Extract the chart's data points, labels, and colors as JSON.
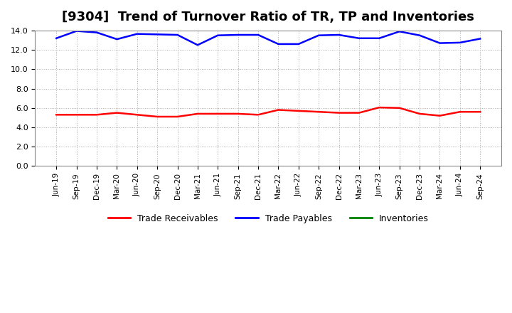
{
  "title": "[9304]  Trend of Turnover Ratio of TR, TP and Inventories",
  "x_labels": [
    "Jun-19",
    "Sep-19",
    "Dec-19",
    "Mar-20",
    "Jun-20",
    "Sep-20",
    "Dec-20",
    "Mar-21",
    "Jun-21",
    "Sep-21",
    "Dec-21",
    "Mar-22",
    "Jun-22",
    "Sep-22",
    "Dec-22",
    "Mar-23",
    "Jun-23",
    "Sep-23",
    "Dec-23",
    "Mar-24",
    "Jun-24",
    "Sep-24"
  ],
  "trade_receivables": [
    5.3,
    5.3,
    5.3,
    5.5,
    5.3,
    5.1,
    5.1,
    5.4,
    5.4,
    5.4,
    5.3,
    5.8,
    5.7,
    5.6,
    5.5,
    5.5,
    6.05,
    6.0,
    5.4,
    5.2,
    5.6,
    5.6
  ],
  "trade_payables": [
    13.2,
    13.95,
    13.8,
    13.1,
    13.65,
    13.6,
    13.55,
    12.5,
    13.5,
    13.55,
    13.55,
    12.6,
    12.6,
    13.5,
    13.55,
    13.2,
    13.2,
    13.9,
    13.5,
    12.7,
    12.75,
    13.15
  ],
  "inventories": [
    5.3,
    5.3,
    5.3,
    5.5,
    5.3,
    5.1,
    5.1,
    5.4,
    5.4,
    5.4,
    5.3,
    5.8,
    5.7,
    5.6,
    5.5,
    5.5,
    6.05,
    6.0,
    5.4,
    5.2,
    5.6,
    5.6
  ],
  "tr_color": "#ff0000",
  "tp_color": "#0000ff",
  "inv_color": "#008000",
  "ylim": [
    0,
    14.0
  ],
  "yticks": [
    0.0,
    2.0,
    4.0,
    6.0,
    8.0,
    10.0,
    12.0,
    14.0
  ],
  "bg_color": "#ffffff",
  "plot_bg_color": "#ffffff",
  "grid_color": "#aaaaaa",
  "title_fontsize": 13,
  "legend_labels": [
    "Trade Receivables",
    "Trade Payables",
    "Inventories"
  ]
}
